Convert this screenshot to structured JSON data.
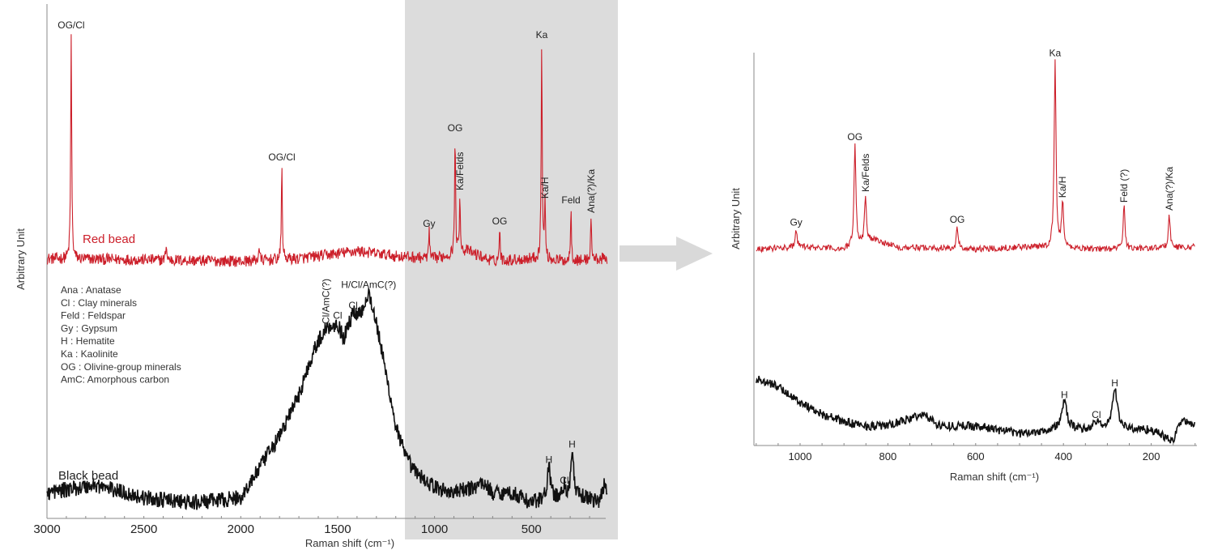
{
  "colors": {
    "red_series": "#cc1f2a",
    "black_series": "#111111",
    "highlight_region": "#dcdcdc",
    "arrow": "#d9d9d9"
  },
  "chart_data": [
    {
      "type": "line",
      "xlabel": "Raman shift (cm⁻¹)",
      "ylabel": "Arbitrary Unit",
      "xlim": [
        3000,
        110
      ],
      "x_reversed": true,
      "ylim": [
        0,
        100
      ],
      "xticks": [
        3000,
        2500,
        2000,
        1500,
        1000,
        500
      ],
      "highlighted_range": [
        1150,
        100
      ],
      "legend_text": [
        "Ana : Anatase",
        "Cl : Clay minerals",
        "Feld : Feldspar",
        "Gy : Gypsum",
        "H : Hematite",
        "Ka : Kaolinite",
        "OG : Olivine-group minerals",
        "AmC: Amorphous carbon"
      ],
      "series": [
        {
          "name": "Red bead",
          "color": "#cc1f2a",
          "baseline": [
            [
              3000,
              50.5
            ],
            [
              2500,
              50.3
            ],
            [
              2000,
              50
            ],
            [
              1700,
              50.5
            ],
            [
              1400,
              52
            ],
            [
              1200,
              51
            ],
            [
              1000,
              50.5
            ],
            [
              830,
              52
            ],
            [
              700,
              50
            ],
            [
              500,
              50.5
            ],
            [
              300,
              50
            ],
            [
              110,
              50.5
            ]
          ],
          "peaks": [
            {
              "x": 2875,
              "y": 94.5,
              "label": "OG/Cl",
              "rotated": false
            },
            {
              "x": 2385,
              "y": 53.5
            },
            {
              "x": 1905,
              "y": 53
            },
            {
              "x": 1788,
              "y": 68.8,
              "label": "OG/Cl",
              "rotated": false
            },
            {
              "x": 1028,
              "y": 55.9,
              "label": "Gy",
              "rotated": false
            },
            {
              "x": 894,
              "y": 74.5,
              "label": "OG",
              "rotated": false
            },
            {
              "x": 869,
              "y": 63,
              "label": "Ka/Felds",
              "rotated": true
            },
            {
              "x": 664,
              "y": 56.4,
              "label": "OG",
              "rotated": false
            },
            {
              "x": 447,
              "y": 92.6,
              "label": "Ka",
              "rotated": false
            },
            {
              "x": 430,
              "y": 61.4,
              "label": "Ka/H",
              "rotated": true
            },
            {
              "x": 296,
              "y": 60.5,
              "label": "Feld",
              "rotated": false
            },
            {
              "x": 192,
              "y": 58.6,
              "label": "Ana(?)/Ka",
              "rotated": true
            }
          ]
        },
        {
          "name": "Black bead",
          "color": "#111111",
          "baseline": [
            [
              3000,
              5
            ],
            [
              2750,
              6.5
            ],
            [
              2500,
              4
            ],
            [
              2250,
              3
            ],
            [
              2000,
              4
            ],
            [
              1900,
              10
            ],
            [
              1800,
              16
            ],
            [
              1700,
              24
            ],
            [
              1620,
              33
            ],
            [
              1560,
              37
            ],
            [
              1500,
              38
            ],
            [
              1470,
              35
            ],
            [
              1420,
              40
            ],
            [
              1380,
              40
            ],
            [
              1340,
              44
            ],
            [
              1300,
              38
            ],
            [
              1250,
              28
            ],
            [
              1200,
              18
            ],
            [
              1150,
              12
            ],
            [
              1100,
              9
            ],
            [
              1000,
              6
            ],
            [
              900,
              5
            ],
            [
              800,
              6
            ],
            [
              750,
              7
            ],
            [
              700,
              5
            ],
            [
              600,
              5
            ],
            [
              500,
              3
            ],
            [
              420,
              4
            ],
            [
              350,
              4
            ],
            [
              200,
              4
            ],
            [
              150,
              3
            ],
            [
              125,
              7
            ],
            [
              110,
              5
            ]
          ],
          "peaks": [
            {
              "x": 410,
              "y": 10,
              "label": "H",
              "rotated": false
            },
            {
              "x": 330,
              "y": 6,
              "label": "Cl",
              "rotated": false
            },
            {
              "x": 290,
              "y": 13,
              "label": "H",
              "rotated": false
            }
          ],
          "annotations": [
            {
              "x": 1560,
              "y": 37,
              "label": "Cl/AmC(?)",
              "rotated": true
            },
            {
              "x": 1500,
              "y": 38,
              "label": "Cl",
              "rotated": false
            },
            {
              "x": 1420,
              "y": 40,
              "label": "Cl",
              "rotated": false
            },
            {
              "x": 1340,
              "y": 44,
              "label": "H/Cl/AmC(?)",
              "rotated": false
            }
          ]
        }
      ]
    },
    {
      "type": "line",
      "xlabel": "Raman shift (cm⁻¹)",
      "ylabel": "Arbitrary Unit",
      "xlim": [
        1100,
        100
      ],
      "x_reversed": true,
      "ylim": [
        0,
        100
      ],
      "xticks": [
        1000,
        800,
        600,
        400,
        200
      ],
      "series": [
        {
          "color": "#cc1f2a",
          "baseline": [
            [
              1100,
              50
            ],
            [
              1000,
              50.5
            ],
            [
              900,
              50
            ],
            [
              830,
              52.5
            ],
            [
              780,
              50.5
            ],
            [
              600,
              50
            ],
            [
              500,
              50.5
            ],
            [
              300,
              50
            ],
            [
              100,
              50.5
            ]
          ],
          "peaks": [
            {
              "x": 1009,
              "y": 55,
              "label": "Gy",
              "rotated": false
            },
            {
              "x": 875,
              "y": 76.7,
              "label": "OG",
              "rotated": false
            },
            {
              "x": 851,
              "y": 63.5,
              "label": "Ka/Felds",
              "rotated": true
            },
            {
              "x": 642,
              "y": 55.7,
              "label": "OG",
              "rotated": false
            },
            {
              "x": 419,
              "y": 98,
              "label": "Ka",
              "rotated": false
            },
            {
              "x": 402,
              "y": 62,
              "label": "Ka/H",
              "rotated": true
            },
            {
              "x": 262,
              "y": 60.8,
              "label": "Feld (?)",
              "rotated": true
            },
            {
              "x": 159,
              "y": 58.8,
              "label": "Ana(?)/Ka",
              "rotated": true
            }
          ]
        },
        {
          "color": "#111111",
          "baseline": [
            [
              1100,
              17
            ],
            [
              1050,
              15
            ],
            [
              1000,
              11
            ],
            [
              950,
              8
            ],
            [
              900,
              6
            ],
            [
              850,
              5
            ],
            [
              800,
              5
            ],
            [
              720,
              8
            ],
            [
              680,
              5
            ],
            [
              600,
              5
            ],
            [
              500,
              3
            ],
            [
              420,
              4
            ],
            [
              400,
              4
            ],
            [
              300,
              4
            ],
            [
              200,
              4
            ],
            [
              150,
              1
            ],
            [
              130,
              7
            ],
            [
              110,
              5
            ]
          ],
          "peaks": [
            {
              "x": 398,
              "y": 11,
              "label": "H",
              "rotated": false
            },
            {
              "x": 325,
              "y": 6,
              "label": "Cl",
              "rotated": false
            },
            {
              "x": 283,
              "y": 14,
              "label": "H",
              "rotated": false
            }
          ]
        }
      ]
    }
  ]
}
